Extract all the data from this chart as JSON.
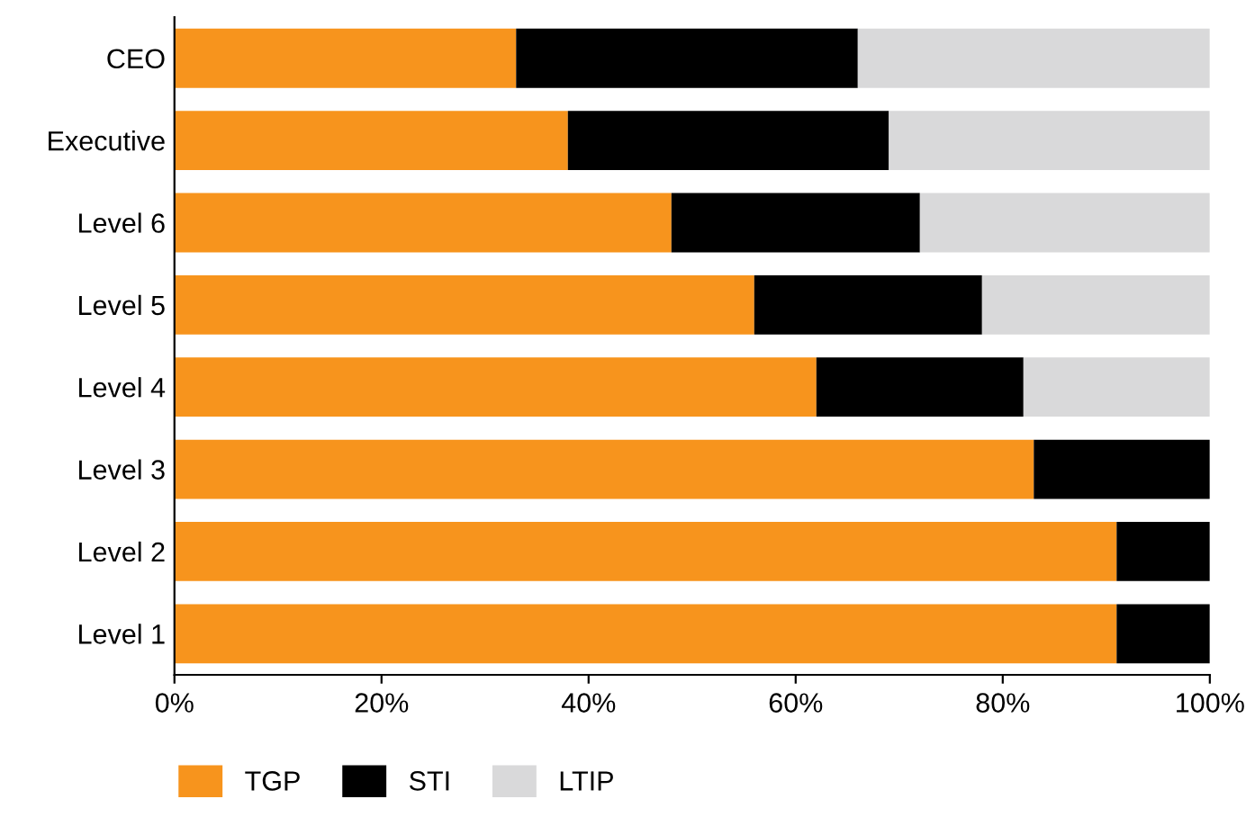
{
  "chart_data": {
    "type": "bar",
    "orientation": "horizontal",
    "stacked": true,
    "categories": [
      "CEO",
      "Executive",
      "Level 6",
      "Level 5",
      "Level 4",
      "Level 3",
      "Level 2",
      "Level 1"
    ],
    "series": [
      {
        "name": "TGP",
        "color": "#f7941d",
        "values": [
          33,
          38,
          48,
          56,
          62,
          83,
          91,
          91
        ]
      },
      {
        "name": "STI",
        "color": "#000000",
        "values": [
          33,
          31,
          24,
          22,
          20,
          17,
          9,
          9
        ]
      },
      {
        "name": "LTIP",
        "color": "#d9d9da",
        "values": [
          34,
          31,
          28,
          22,
          18,
          0,
          0,
          0
        ]
      }
    ],
    "xlim": [
      0,
      100
    ],
    "xticks": [
      {
        "value": 0,
        "label": "0%"
      },
      {
        "value": 20,
        "label": "20%"
      },
      {
        "value": 40,
        "label": "40%"
      },
      {
        "value": 60,
        "label": "60%"
      },
      {
        "value": 80,
        "label": "80%"
      },
      {
        "value": 100,
        "label": "100%"
      }
    ],
    "grid": false,
    "legend": "bottom left"
  }
}
